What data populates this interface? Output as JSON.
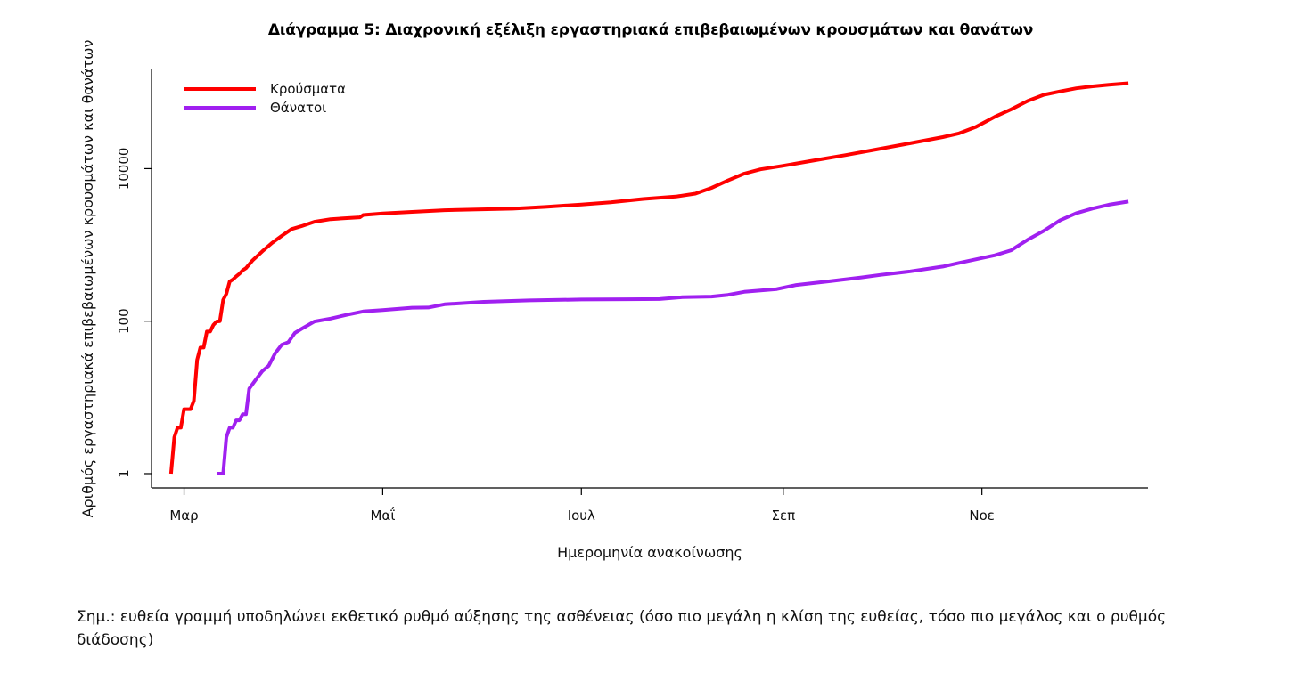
{
  "chart_data": {
    "type": "line",
    "title": "Διάγραμμα 5: Διαχρονική εξέλιξη εργαστηριακά επιβεβαιωμένων κρουσμάτων και θανάτων",
    "xlabel": "Ημερομηνία ανακοίνωσης",
    "ylabel": "Αριθμός εργαστηριακά επιβεβαιωμένων κρουσμάτων και θανάτων",
    "y_scale": "log",
    "ylim": [
      0.65,
      200000
    ],
    "yticks": [
      1,
      100,
      10000
    ],
    "ytick_labels": [
      "1",
      "100",
      "10000"
    ],
    "xlim": [
      "2020-02-20",
      "2020-12-22"
    ],
    "xticks": [
      "2020-03-01",
      "2020-05-01",
      "2020-07-01",
      "2020-09-01",
      "2020-11-01"
    ],
    "xtick_labels": [
      "Μαρ",
      "Μαΐ",
      "Ιουλ",
      "Σεπ",
      "Νοε"
    ],
    "legend_position": "top-left",
    "grid": false,
    "series": [
      {
        "name": "Κρούσματα",
        "color": "#ff0000",
        "points": [
          [
            "2020-02-26",
            1
          ],
          [
            "2020-02-27",
            3
          ],
          [
            "2020-02-28",
            4
          ],
          [
            "2020-02-29",
            4
          ],
          [
            "2020-03-01",
            7
          ],
          [
            "2020-03-03",
            7
          ],
          [
            "2020-03-04",
            9
          ],
          [
            "2020-03-05",
            31
          ],
          [
            "2020-03-06",
            45
          ],
          [
            "2020-03-07",
            45
          ],
          [
            "2020-03-08",
            73
          ],
          [
            "2020-03-09",
            73
          ],
          [
            "2020-03-10",
            89
          ],
          [
            "2020-03-11",
            99
          ],
          [
            "2020-03-12",
            100
          ],
          [
            "2020-03-13",
            190
          ],
          [
            "2020-03-14",
            228
          ],
          [
            "2020-03-15",
            331
          ],
          [
            "2020-03-16",
            352
          ],
          [
            "2020-03-17",
            387
          ],
          [
            "2020-03-18",
            418
          ],
          [
            "2020-03-19",
            464
          ],
          [
            "2020-03-20",
            495
          ],
          [
            "2020-03-22",
            624
          ],
          [
            "2020-03-25",
            821
          ],
          [
            "2020-03-28",
            1061
          ],
          [
            "2020-03-31",
            1314
          ],
          [
            "2020-04-03",
            1613
          ],
          [
            "2020-04-06",
            1755
          ],
          [
            "2020-04-10",
            2011
          ],
          [
            "2020-04-15",
            2170
          ],
          [
            "2020-04-20",
            2245
          ],
          [
            "2020-04-24",
            2300
          ],
          [
            "2020-04-25",
            2463
          ],
          [
            "2020-05-01",
            2591
          ],
          [
            "2020-05-10",
            2710
          ],
          [
            "2020-05-20",
            2850
          ],
          [
            "2020-05-30",
            2915
          ],
          [
            "2020-06-10",
            2980
          ],
          [
            "2020-06-20",
            3150
          ],
          [
            "2020-07-01",
            3390
          ],
          [
            "2020-07-10",
            3620
          ],
          [
            "2020-07-20",
            4000
          ],
          [
            "2020-07-30",
            4300
          ],
          [
            "2020-08-05",
            4700
          ],
          [
            "2020-08-10",
            5600
          ],
          [
            "2020-08-15",
            7000
          ],
          [
            "2020-08-20",
            8600
          ],
          [
            "2020-08-25",
            9800
          ],
          [
            "2020-09-01",
            10900
          ],
          [
            "2020-09-10",
            12700
          ],
          [
            "2020-09-20",
            15000
          ],
          [
            "2020-09-30",
            18000
          ],
          [
            "2020-10-10",
            21500
          ],
          [
            "2020-10-20",
            25900
          ],
          [
            "2020-10-25",
            29000
          ],
          [
            "2020-10-30",
            35000
          ],
          [
            "2020-11-05",
            48000
          ],
          [
            "2020-11-10",
            60000
          ],
          [
            "2020-11-15",
            77000
          ],
          [
            "2020-11-20",
            93000
          ],
          [
            "2020-11-25",
            103000
          ],
          [
            "2020-11-30",
            113000
          ],
          [
            "2020-12-05",
            120000
          ],
          [
            "2020-12-10",
            126000
          ],
          [
            "2020-12-16",
            132000
          ]
        ]
      },
      {
        "name": "Θάνατοι",
        "color": "#a020f0",
        "points": [
          [
            "2020-03-11",
            1
          ],
          [
            "2020-03-13",
            1
          ],
          [
            "2020-03-14",
            3
          ],
          [
            "2020-03-15",
            4
          ],
          [
            "2020-03-16",
            4
          ],
          [
            "2020-03-17",
            5
          ],
          [
            "2020-03-18",
            5
          ],
          [
            "2020-03-19",
            6
          ],
          [
            "2020-03-20",
            6
          ],
          [
            "2020-03-21",
            13
          ],
          [
            "2020-03-23",
            17
          ],
          [
            "2020-03-25",
            22
          ],
          [
            "2020-03-27",
            26
          ],
          [
            "2020-03-29",
            38
          ],
          [
            "2020-03-31",
            49
          ],
          [
            "2020-04-02",
            53
          ],
          [
            "2020-04-04",
            70
          ],
          [
            "2020-04-06",
            79
          ],
          [
            "2020-04-10",
            99
          ],
          [
            "2020-04-15",
            108
          ],
          [
            "2020-04-20",
            121
          ],
          [
            "2020-04-25",
            134
          ],
          [
            "2020-05-01",
            140
          ],
          [
            "2020-05-10",
            150
          ],
          [
            "2020-05-15",
            151
          ],
          [
            "2020-05-20",
            166
          ],
          [
            "2020-06-01",
            179
          ],
          [
            "2020-06-15",
            187
          ],
          [
            "2020-07-01",
            192
          ],
          [
            "2020-07-15",
            194
          ],
          [
            "2020-07-25",
            195
          ],
          [
            "2020-08-01",
            206
          ],
          [
            "2020-08-10",
            210
          ],
          [
            "2020-08-15",
            221
          ],
          [
            "2020-08-20",
            242
          ],
          [
            "2020-08-30",
            263
          ],
          [
            "2020-09-05",
            298
          ],
          [
            "2020-09-15",
            333
          ],
          [
            "2020-09-25",
            374
          ],
          [
            "2020-10-01",
            405
          ],
          [
            "2020-10-10",
            449
          ],
          [
            "2020-10-20",
            520
          ],
          [
            "2020-10-25",
            581
          ],
          [
            "2020-11-01",
            673
          ],
          [
            "2020-11-05",
            732
          ],
          [
            "2020-11-10",
            851
          ],
          [
            "2020-11-15",
            1165
          ],
          [
            "2020-11-20",
            1527
          ],
          [
            "2020-11-25",
            2102
          ],
          [
            "2020-11-30",
            2606
          ],
          [
            "2020-12-05",
            3003
          ],
          [
            "2020-12-10",
            3370
          ],
          [
            "2020-12-16",
            3700
          ]
        ]
      }
    ]
  },
  "note": "Σημ.: ευθεία γραμμή υποδηλώνει εκθετικό ρυθμό αύξησης της ασθένειας (όσο πιο μεγάλη η κλίση της ευθείας, τόσο πιο μεγάλος και ο ρυθμός διάδοσης)"
}
